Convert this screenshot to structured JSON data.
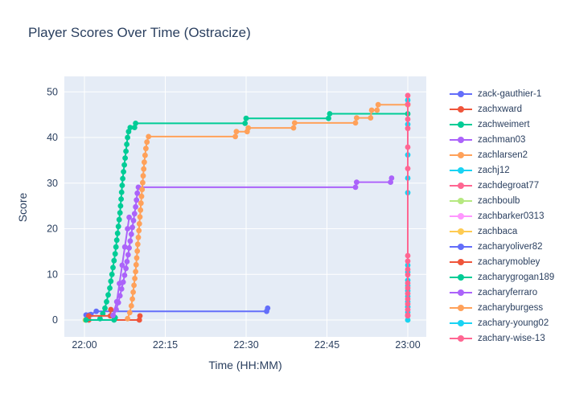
{
  "title": "Player Scores Over Time (Ostracize)",
  "chart_data": {
    "type": "line",
    "title": "Player Scores Over Time (Ostracize)",
    "xlabel": "Time (HH:MM)",
    "ylabel": "Score",
    "x_unit": "minutes after 22:00",
    "x_range_minutes": [
      -3.73,
      63.43
    ],
    "y_range": [
      -3.7,
      53.4
    ],
    "grid": true,
    "legend_position": "right",
    "plot_bg_color": "#E5ECF6",
    "grid_color": "#ffffff",
    "text_color": "#2a3f5f",
    "x_ticks": [
      {
        "m": 0,
        "label": "22:00"
      },
      {
        "m": 15,
        "label": "22:15"
      },
      {
        "m": 30,
        "label": "22:30"
      },
      {
        "m": 45,
        "label": "22:45"
      },
      {
        "m": 60,
        "label": "23:00"
      }
    ],
    "y_ticks": [
      0,
      10,
      20,
      30,
      40,
      50
    ],
    "series": [
      {
        "name": "zack-gauthier-1",
        "color": "#636EFA",
        "points": [
          [
            0.3,
            1.1
          ],
          [
            1.2,
            1.2
          ],
          [
            2.2,
            1.9
          ],
          [
            33.8,
            1.9
          ],
          [
            34,
            2.6
          ]
        ]
      },
      {
        "name": "zachxward",
        "color": "#EF553B",
        "points": [
          [
            0.8,
            0
          ],
          [
            10.2,
            0
          ],
          [
            10.3,
            0.9
          ]
        ]
      },
      {
        "name": "zachweimert",
        "color": "#00CC96",
        "points": [
          [
            2.9,
            0.3
          ],
          [
            3.4,
            1.4
          ],
          [
            3.8,
            2.6
          ],
          [
            4.1,
            4
          ],
          [
            4.4,
            5.5
          ],
          [
            4.7,
            7
          ],
          [
            4.9,
            8.5
          ],
          [
            5.1,
            10
          ],
          [
            5.3,
            11.5
          ],
          [
            5.5,
            13
          ],
          [
            5.7,
            14.5
          ],
          [
            5.85,
            16
          ],
          [
            6.0,
            17.5
          ],
          [
            6.15,
            19
          ],
          [
            6.3,
            20.5
          ],
          [
            6.45,
            22
          ],
          [
            6.6,
            23.5
          ],
          [
            6.7,
            25
          ],
          [
            6.8,
            26.5
          ],
          [
            6.9,
            28
          ],
          [
            7.0,
            29.5
          ],
          [
            7.1,
            31
          ],
          [
            7.25,
            32.5
          ],
          [
            7.4,
            34
          ],
          [
            7.55,
            35.5
          ],
          [
            7.7,
            37
          ],
          [
            7.85,
            38.5
          ],
          [
            8.0,
            40
          ],
          [
            8.2,
            41.3
          ],
          [
            8.5,
            42.2
          ],
          [
            9.3,
            42.2
          ],
          [
            9.5,
            43.1
          ],
          [
            29.8,
            43.1
          ],
          [
            30,
            44.2
          ],
          [
            45.3,
            44.2
          ],
          [
            45.5,
            45.2
          ],
          [
            60,
            45.2
          ]
        ]
      },
      {
        "name": "zachman03",
        "color": "#AB63FA",
        "points": [
          [
            5.4,
            0.9
          ],
          [
            5.9,
            2.3
          ],
          [
            6.3,
            3.8
          ],
          [
            6.6,
            5.3
          ],
          [
            6.9,
            6.8
          ],
          [
            7.2,
            8.3
          ],
          [
            7.45,
            9.8
          ],
          [
            7.7,
            11.3
          ],
          [
            7.9,
            12.8
          ],
          [
            8.1,
            14.3
          ],
          [
            8.3,
            15.8
          ],
          [
            8.5,
            17.3
          ],
          [
            8.7,
            18.8
          ],
          [
            8.9,
            20.3
          ],
          [
            9.1,
            21.8
          ],
          [
            9.3,
            23.3
          ],
          [
            9.5,
            24.8
          ],
          [
            9.65,
            26.3
          ],
          [
            9.8,
            27.8
          ],
          [
            10.0,
            29.1
          ],
          [
            50.3,
            29.1
          ],
          [
            50.5,
            30.2
          ],
          [
            56.8,
            30.2
          ],
          [
            57,
            31.1
          ]
        ]
      },
      {
        "name": "zachlarsen2",
        "color": "#FFA15A",
        "points": [
          [
            8.0,
            0.3
          ],
          [
            8.4,
            1.6
          ],
          [
            8.7,
            3.1
          ],
          [
            8.9,
            4.6
          ],
          [
            9.05,
            6.1
          ],
          [
            9.2,
            7.6
          ],
          [
            9.35,
            9.1
          ],
          [
            9.5,
            10.6
          ],
          [
            9.6,
            12.1
          ],
          [
            9.7,
            13.6
          ],
          [
            9.8,
            15.1
          ],
          [
            9.9,
            16.6
          ],
          [
            10.0,
            18.1
          ],
          [
            10.1,
            19.6
          ],
          [
            10.2,
            21.1
          ],
          [
            10.3,
            22.6
          ],
          [
            10.4,
            24.1
          ],
          [
            10.5,
            25.6
          ],
          [
            10.6,
            27.1
          ],
          [
            10.7,
            28.6
          ],
          [
            10.8,
            30.1
          ],
          [
            10.9,
            31.6
          ],
          [
            11.0,
            33.1
          ],
          [
            11.1,
            34.6
          ],
          [
            11.25,
            36.1
          ],
          [
            11.4,
            37.6
          ],
          [
            11.6,
            39
          ],
          [
            11.9,
            40.2
          ],
          [
            28,
            40.2
          ],
          [
            28.2,
            41.3
          ],
          [
            30.2,
            41.3
          ],
          [
            30.4,
            42.1
          ],
          [
            38.8,
            42.1
          ],
          [
            39,
            43.2
          ],
          [
            50.3,
            43.2
          ],
          [
            50.5,
            44.3
          ],
          [
            53.1,
            44.3
          ],
          [
            53.3,
            46.0
          ],
          [
            54.3,
            46.0
          ],
          [
            54.5,
            47.2
          ],
          [
            60,
            47.2
          ]
        ]
      },
      {
        "name": "zachj12",
        "color": "#19D3F3",
        "points": [
          [
            60,
            2.9
          ]
        ]
      },
      {
        "name": "zachdegroat77",
        "color": "#FF6692",
        "points": [
          [
            60,
            0.9
          ]
        ]
      },
      {
        "name": "zachboulb",
        "color": "#B6E880",
        "points": [
          [
            60,
            0
          ]
        ]
      },
      {
        "name": "zachbarker0313",
        "color": "#FF97FF",
        "points": [
          [
            60,
            2.3
          ]
        ]
      },
      {
        "name": "zachbaca",
        "color": "#FECB52",
        "points": [
          [
            0.15,
            0
          ]
        ]
      },
      {
        "name": "zacharyoliver82",
        "color": "#636EFA",
        "points": [
          [
            0.5,
            1.0
          ],
          [
            0.9,
            1.1
          ]
        ]
      },
      {
        "name": "zacharymobley",
        "color": "#EF553B",
        "points": [
          [
            0.8,
            0.9
          ],
          [
            4.8,
            0.9
          ],
          [
            4.9,
            2.3
          ]
        ]
      },
      {
        "name": "zacharygrogan189",
        "color": "#00CC96",
        "points": [
          [
            0.3,
            0
          ],
          [
            5.5,
            0
          ],
          [
            5.7,
            0.5
          ]
        ]
      },
      {
        "name": "zacharyferraro",
        "color": "#AB63FA",
        "points": [
          [
            5.3,
            1
          ],
          [
            6,
            4
          ],
          [
            6.5,
            8
          ],
          [
            7,
            12
          ],
          [
            7.5,
            16
          ],
          [
            8,
            20
          ],
          [
            8.3,
            22.5
          ]
        ]
      },
      {
        "name": "zacharyburgess",
        "color": "#FFA15A",
        "points": [
          [
            60,
            47.2
          ]
        ]
      },
      {
        "name": "zachary-young02",
        "color": "#19D3F3",
        "points": [
          [
            60,
            0
          ],
          [
            60,
            1.7
          ],
          [
            60,
            2.9
          ],
          [
            60,
            4.0
          ],
          [
            60,
            5.2
          ],
          [
            60,
            6.4
          ],
          [
            60,
            7.5
          ],
          [
            60,
            8.7
          ],
          [
            60,
            10.5
          ],
          [
            60,
            12.0
          ],
          [
            60,
            27.9
          ],
          [
            60,
            31.1
          ],
          [
            60,
            36.2
          ],
          [
            60,
            42.9
          ],
          [
            60,
            48.2
          ]
        ]
      },
      {
        "name": "zachary-wise-13",
        "color": "#FF6692",
        "points": [
          [
            60,
            0.9
          ],
          [
            60,
            1.1
          ],
          [
            60,
            2.3
          ],
          [
            60,
            3.5
          ],
          [
            60,
            4.6
          ],
          [
            60,
            5.8
          ],
          [
            60,
            7.0
          ],
          [
            60,
            8.1
          ],
          [
            60,
            9.9
          ],
          [
            60,
            11.1
          ],
          [
            60,
            12.9
          ],
          [
            60,
            14.1
          ],
          [
            60,
            33.2
          ],
          [
            60,
            37.9
          ],
          [
            60,
            42.0
          ],
          [
            60,
            44.0
          ],
          [
            60,
            47.3
          ],
          [
            60,
            49.2
          ]
        ]
      }
    ]
  }
}
